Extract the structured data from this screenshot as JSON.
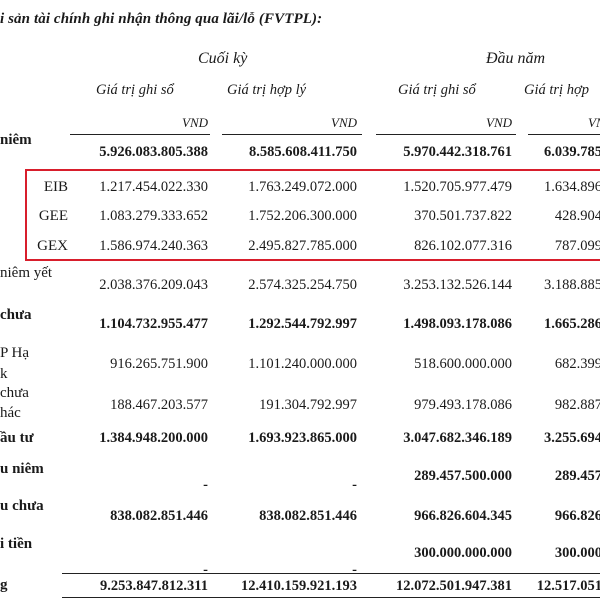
{
  "title": "i sản tài chính ghi nhận thông qua lãi/lỗ (FVTPL):",
  "header": {
    "group_end": "Cuối kỳ",
    "group_start": "Đầu năm",
    "col_book_end": "Giá trị ghi sổ",
    "col_fair_end": "Giá trị hợp lý",
    "col_book_start": "Giá trị ghi sổ",
    "col_fair_start": "Giá trị hợp",
    "unit_1": "VND",
    "unit_2": "VND",
    "unit_3": "VND",
    "unit_4": "VND"
  },
  "rows": [
    {
      "label": "niêm",
      "code": "",
      "values": [
        "5.926.083.805.388",
        "8.585.608.411.750",
        "5.970.442.318.761",
        "6.039.785"
      ],
      "bold": true
    },
    {
      "label": "",
      "code": "EIB",
      "values": [
        "1.217.454.022.330",
        "1.763.249.072.000",
        "1.520.705.977.479",
        "1.634.896"
      ],
      "bold": false
    },
    {
      "label": "",
      "code": "GEE",
      "values": [
        "1.083.279.333.652",
        "1.752.206.300.000",
        "370.501.737.822",
        "428.904"
      ],
      "bold": false
    },
    {
      "label": "",
      "code": "GEX",
      "values": [
        "1.586.974.240.363",
        "2.495.827.785.000",
        "826.102.077.316",
        "787.099"
      ],
      "bold": false
    },
    {
      "label": "niêm yết",
      "code": "",
      "values": [
        "2.038.376.209.043",
        "2.574.325.254.750",
        "3.253.132.526.144",
        "3.188.885"
      ],
      "bold": false
    },
    {
      "label": "chưa",
      "code": "",
      "values": [
        "1.104.732.955.477",
        "1.292.544.792.997",
        "1.498.093.178.086",
        "1.665.286"
      ],
      "bold": true
    },
    {
      "label": "P Hạ",
      "label2": "k",
      "code": "",
      "values": [
        "916.265.751.900",
        "1.101.240.000.000",
        "518.600.000.000",
        "682.399"
      ],
      "bold": false
    },
    {
      "label": "chưa",
      "label2": "hác",
      "code": "",
      "values": [
        "188.467.203.577",
        "191.304.792.997",
        "979.493.178.086",
        "982.887"
      ],
      "bold": false
    },
    {
      "label": "ầu tư",
      "code": "",
      "values": [
        "1.384.948.200.000",
        "1.693.923.865.000",
        "3.047.682.346.189",
        "3.255.694"
      ],
      "bold": true
    },
    {
      "label": "u niêm",
      "code": "",
      "values": [
        "-",
        "-",
        "289.457.500.000",
        "289.457"
      ],
      "bold": true
    },
    {
      "label": "u chưa",
      "code": "",
      "values": [
        "838.082.851.446",
        "838.082.851.446",
        "966.826.604.345",
        "966.826"
      ],
      "bold": true
    },
    {
      "label": "i tiền",
      "code": "",
      "values": [
        "-",
        "-",
        "300.000.000.000",
        "300.000"
      ],
      "bold": true
    },
    {
      "label": "g",
      "code": "",
      "values": [
        "9.253.847.812.311",
        "12.410.159.921.193",
        "12.072.501.947.381",
        "12.517.051"
      ],
      "bold": true
    }
  ]
}
